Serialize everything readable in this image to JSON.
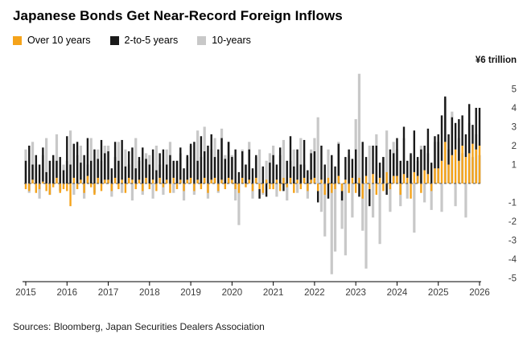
{
  "title": "Japanese Bonds Get Near-Record Foreign Inflows",
  "legend": [
    {
      "label": "Over 10 years",
      "color": "#f5a31a"
    },
    {
      "label": "2-to-5 years",
      "color": "#1a1a1a"
    },
    {
      "label": "10-years",
      "color": "#c8c8c8"
    }
  ],
  "source": "Sources: Bloomberg, Japan Securities Dealers Association",
  "chart_data": {
    "type": "bar",
    "title": "Japanese Bonds Get Near-Record Foreign Inflows",
    "unit_label": "¥6 trillion",
    "frequency": "monthly",
    "start": "2015-01",
    "end": "2026-01",
    "x_year_ticks": [
      2015,
      2016,
      2017,
      2018,
      2019,
      2020,
      2021,
      2022,
      2023,
      2024,
      2025,
      2026
    ],
    "y_ticks": [
      5,
      4,
      3,
      2,
      1,
      -1,
      -2,
      -3,
      -4,
      -5
    ],
    "ylim": [
      -5.5,
      6
    ],
    "grid": false,
    "legend_position": "top-left",
    "series": [
      {
        "name": "Over 10 years",
        "color": "#f5a31a",
        "values": [
          -0.3,
          -0.4,
          0.2,
          -0.5,
          -0.3,
          0.1,
          -0.4,
          -0.6,
          -0.2,
          0.3,
          -0.5,
          -0.3,
          -0.4,
          -1.2,
          0.3,
          -0.3,
          0.2,
          -0.5,
          0.4,
          -0.2,
          -0.6,
          0.3,
          -0.4,
          0.2,
          0.2,
          -0.4,
          0.3,
          -0.3,
          0.2,
          -0.5,
          0.3,
          0.2,
          -0.3,
          0.2,
          -0.4,
          0.3,
          -0.3,
          0.2,
          -0.4,
          0.3,
          -0.2,
          0.2,
          -0.5,
          0.3,
          -0.3,
          0.2,
          -0.4,
          0.2,
          0.3,
          -0.4,
          0.2,
          -0.3,
          0.3,
          -0.5,
          0.2,
          0.3,
          -0.4,
          0.2,
          -0.3,
          0.3,
          0.2,
          -0.3,
          -0.5,
          0.3,
          -0.2,
          0.2,
          -0.4,
          0.3,
          -0.3,
          -0.5,
          0.2,
          -0.3,
          -0.3,
          0.2,
          -0.4,
          0.3,
          -0.2,
          0.3,
          -0.5,
          0.2,
          -0.3,
          0.3,
          -0.4,
          0.2,
          0.3,
          -0.4,
          0.2,
          -0.6,
          0.3,
          -0.5,
          -0.3,
          0.4,
          -0.4,
          0.2,
          -0.5,
          0.3,
          -0.5,
          0.3,
          -0.8,
          0.4,
          -0.3,
          0.5,
          -0.6,
          0.3,
          -0.4,
          0.6,
          -0.3,
          0.4,
          0.4,
          -0.6,
          0.5,
          0.3,
          -0.8,
          0.6,
          0.4,
          -0.5,
          0.7,
          0.5,
          -0.4,
          0.8,
          0.8,
          1.2,
          2.2,
          1.0,
          1.5,
          1.8,
          1.2,
          2.0,
          1.4,
          1.6,
          2.1,
          1.8,
          2.0
        ]
      },
      {
        "name": "2-to-5 years",
        "color": "#1a1a1a",
        "values": [
          1.2,
          2.0,
          0.8,
          1.5,
          1.0,
          1.8,
          0.6,
          1.2,
          1.5,
          0.9,
          1.4,
          0.7,
          2.5,
          1.0,
          1.8,
          2.2,
          0.9,
          1.5,
          2.0,
          1.2,
          1.8,
          1.0,
          2.3,
          1.4,
          1.5,
          0.8,
          1.9,
          1.2,
          2.1,
          0.9,
          1.4,
          1.7,
          0.8,
          1.2,
          1.9,
          1.0,
          1.0,
          1.6,
          0.7,
          1.3,
          1.8,
          0.8,
          1.5,
          0.9,
          1.2,
          1.7,
          0.8,
          1.3,
          1.8,
          2.2,
          1.0,
          2.5,
          1.4,
          2.0,
          2.4,
          1.1,
          1.8,
          2.2,
          1.3,
          1.9,
          1.2,
          1.8,
          0.6,
          1.4,
          1.0,
          1.6,
          0.8,
          1.2,
          -0.5,
          0.9,
          -0.7,
          1.1,
          1.5,
          0.8,
          1.9,
          -0.4,
          1.2,
          2.2,
          0.9,
          1.6,
          1.0,
          2.0,
          0.7,
          1.4,
          1.4,
          -0.6,
          1.8,
          1.0,
          -0.8,
          1.5,
          0.9,
          1.7,
          -0.5,
          1.2,
          1.8,
          1.0,
          1.8,
          -0.7,
          2.2,
          1.0,
          -0.9,
          1.5,
          2.0,
          0.8,
          1.4,
          -0.6,
          1.8,
          1.2,
          2.0,
          1.2,
          2.5,
          0.9,
          1.6,
          2.2,
          1.0,
          1.8,
          1.3,
          2.4,
          1.1,
          1.7,
          1.8,
          2.4,
          2.4,
          1.6,
          2.0,
          1.4,
          2.2,
          1.6,
          1.2,
          2.6,
          1.0,
          2.2,
          2.0
        ]
      },
      {
        "name": "10-years",
        "color": "#c8c8c8",
        "values": [
          1.8,
          -0.5,
          2.2,
          1.0,
          -0.8,
          1.5,
          2.4,
          -0.6,
          1.2,
          2.6,
          -0.4,
          1.0,
          1.2,
          2.8,
          -0.6,
          1.5,
          2.0,
          -0.8,
          1.0,
          2.4,
          -0.5,
          1.8,
          1.2,
          2.0,
          2.0,
          -0.7,
          1.4,
          2.2,
          -0.5,
          1.8,
          1.0,
          -0.9,
          2.4,
          1.2,
          -0.6,
          1.6,
          1.5,
          -0.8,
          2.0,
          1.0,
          -0.6,
          1.8,
          2.2,
          -0.5,
          1.2,
          1.6,
          -0.9,
          1.4,
          2.0,
          -0.6,
          2.8,
          1.4,
          3.0,
          -0.8,
          1.8,
          2.4,
          -0.5,
          2.9,
          1.5,
          2.2,
          1.5,
          -0.9,
          -2.2,
          1.8,
          1.0,
          2.2,
          -0.8,
          1.4,
          1.8,
          -0.6,
          1.2,
          1.6,
          2.0,
          -0.7,
          1.5,
          2.3,
          -0.9,
          1.2,
          1.8,
          -0.5,
          2.4,
          1.0,
          -0.8,
          1.8,
          2.4,
          3.5,
          -1.5,
          -2.8,
          1.8,
          -4.8,
          -3.6,
          2.2,
          -2.4,
          -3.8,
          1.5,
          -1.8,
          3.4,
          5.8,
          -2.5,
          -4.5,
          2.0,
          -1.8,
          2.6,
          -3.2,
          1.4,
          2.8,
          -1.5,
          2.2,
          1.8,
          -1.2,
          2.4,
          -0.8,
          1.5,
          -2.6,
          1.2,
          2.0,
          -1.0,
          1.6,
          -1.4,
          2.2,
          2.2,
          -1.5,
          4.5,
          1.8,
          3.8,
          -1.2,
          2.4,
          1.6,
          -1.8,
          3.2,
          1.4,
          2.6,
          1.5
        ]
      }
    ]
  }
}
